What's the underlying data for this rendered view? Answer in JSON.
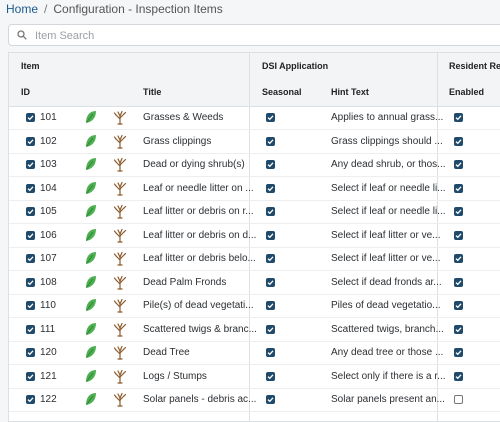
{
  "breadcrumb": {
    "home": "Home",
    "separator": "/",
    "current": "Configuration - Inspection Items"
  },
  "search": {
    "placeholder": "Item Search",
    "icon": "search-icon"
  },
  "table": {
    "group_headers": {
      "item": "Item",
      "dsi": "DSI Application",
      "resident": "Resident Repor"
    },
    "columns": {
      "id": "ID",
      "title": "Title",
      "seasonal": "Seasonal",
      "hint": "Hint Text",
      "enabled": "Enabled"
    },
    "colors": {
      "checkbox": "#1f4a6b",
      "leaf": "#4caf50",
      "tree": "#8b5a2b"
    },
    "icons": [
      "leaf-icon",
      "tree-icon"
    ],
    "rows": [
      {
        "id": "101",
        "title": "Grasses & Weeds",
        "hint": "Applies to annual grass...",
        "selected": true,
        "seasonal": true,
        "enabled": true
      },
      {
        "id": "102",
        "title": "Grass clippings",
        "hint": "Grass clippings should ...",
        "selected": true,
        "seasonal": true,
        "enabled": true
      },
      {
        "id": "103",
        "title": "Dead or dying shrub(s)",
        "hint": "Any dead shrub, or thos...",
        "selected": true,
        "seasonal": true,
        "enabled": true
      },
      {
        "id": "104",
        "title": "Leaf or needle litter on ...",
        "hint": "Select if leaf or needle li...",
        "selected": true,
        "seasonal": true,
        "enabled": true
      },
      {
        "id": "105",
        "title": "Leaf litter or debris on r...",
        "hint": "Select if leaf or needle li...",
        "selected": true,
        "seasonal": true,
        "enabled": true
      },
      {
        "id": "106",
        "title": "Leaf litter or debris on d...",
        "hint": "Select if leaf litter or ve...",
        "selected": true,
        "seasonal": true,
        "enabled": true
      },
      {
        "id": "107",
        "title": "Leaf litter or debris belo...",
        "hint": "Select if leaf litter or ve...",
        "selected": true,
        "seasonal": true,
        "enabled": true
      },
      {
        "id": "108",
        "title": "Dead Palm Fronds",
        "hint": "Select if dead fronds ar...",
        "selected": true,
        "seasonal": true,
        "enabled": true
      },
      {
        "id": "110",
        "title": "Pile(s) of dead vegetati...",
        "hint": "Piles of dead vegetatio...",
        "selected": true,
        "seasonal": true,
        "enabled": true
      },
      {
        "id": "111",
        "title": "Scattered twigs & branc...",
        "hint": "Scattered twigs, branch...",
        "selected": true,
        "seasonal": true,
        "enabled": true
      },
      {
        "id": "120",
        "title": "Dead Tree",
        "hint": "Any dead tree or those ...",
        "selected": true,
        "seasonal": true,
        "enabled": true
      },
      {
        "id": "121",
        "title": "Logs / Stumps",
        "hint": "Select only if there is a r...",
        "selected": true,
        "seasonal": true,
        "enabled": true
      },
      {
        "id": "122",
        "title": "Solar panels - debris ac...",
        "hint": "Solar panels present an...",
        "selected": true,
        "seasonal": true,
        "enabled": false
      }
    ]
  }
}
